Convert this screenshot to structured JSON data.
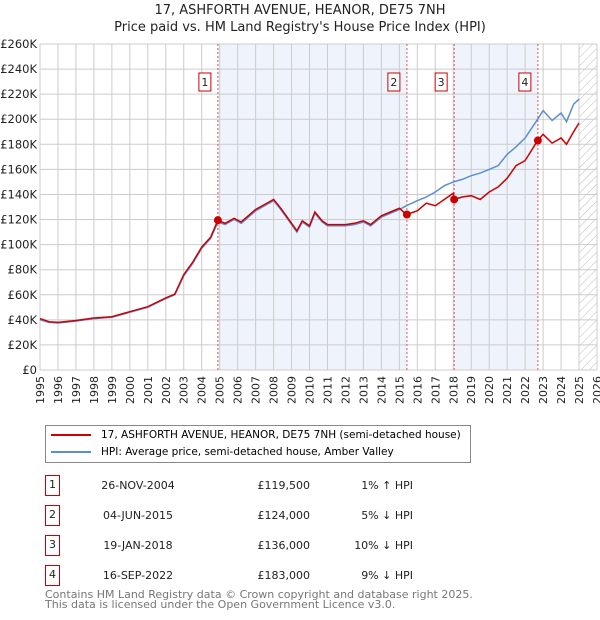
{
  "chart_data": {
    "type": "line",
    "title": "17, ASHFORTH AVENUE, HEANOR, DE75 7NH",
    "subtitle": "Price paid vs. HM Land Registry's House Price Index (HPI)",
    "xlim": [
      1995,
      2026
    ],
    "ylim": [
      0,
      260000
    ],
    "x_ticks": [
      1995,
      1996,
      1997,
      1998,
      1999,
      2000,
      2001,
      2002,
      2003,
      2004,
      2005,
      2006,
      2007,
      2008,
      2009,
      2010,
      2011,
      2012,
      2013,
      2014,
      2015,
      2016,
      2017,
      2018,
      2019,
      2020,
      2021,
      2022,
      2023,
      2024,
      2025,
      2026
    ],
    "y_ticks": [
      {
        "v": 0,
        "label": "£0"
      },
      {
        "v": 20000,
        "label": "£20K"
      },
      {
        "v": 40000,
        "label": "£40K"
      },
      {
        "v": 60000,
        "label": "£60K"
      },
      {
        "v": 80000,
        "label": "£80K"
      },
      {
        "v": 100000,
        "label": "£100K"
      },
      {
        "v": 120000,
        "label": "£120K"
      },
      {
        "v": 140000,
        "label": "£140K"
      },
      {
        "v": 160000,
        "label": "£160K"
      },
      {
        "v": 180000,
        "label": "£180K"
      },
      {
        "v": 200000,
        "label": "£200K"
      },
      {
        "v": 220000,
        "label": "£220K"
      },
      {
        "v": 240000,
        "label": "£240K"
      },
      {
        "v": 260000,
        "label": "£260K"
      }
    ],
    "grid": true,
    "series": [
      {
        "name": "HPI: Average price, semi-detached house, Amber Valley",
        "color": "#5b8fd4",
        "x": [
          1995,
          1995.5,
          1996,
          1997,
          1998,
          1999,
          2000,
          2001,
          2002,
          2002.5,
          2003,
          2003.5,
          2004,
          2004.5,
          2004.9,
          2005.3,
          2005.8,
          2006.2,
          2007,
          2007.5,
          2008,
          2008.4,
          2008.8,
          2009.3,
          2009.6,
          2010,
          2010.3,
          2010.7,
          2011,
          2012,
          2012.5,
          2013,
          2013.4,
          2014,
          2014.5,
          2015,
          2015.4,
          2016,
          2016.5,
          2017,
          2017.5,
          2018,
          2018.5,
          2019,
          2019.5,
          2020,
          2020.5,
          2021,
          2021.5,
          2022,
          2022.7,
          2023,
          2023.5,
          2024,
          2024.3,
          2024.7,
          2025
        ],
        "y": [
          40000,
          38000,
          37500,
          39000,
          41000,
          42000,
          46000,
          50000,
          57000,
          60000,
          75000,
          85000,
          97000,
          105000,
          118000,
          116000,
          120000,
          117000,
          127000,
          131000,
          135000,
          128000,
          120000,
          110000,
          118000,
          114000,
          125000,
          118000,
          115000,
          115000,
          116000,
          118000,
          115000,
          122000,
          125000,
          128000,
          131000,
          135000,
          138000,
          142000,
          147000,
          150000,
          152000,
          155000,
          157000,
          160000,
          163000,
          172000,
          178000,
          185000,
          200000,
          207000,
          199000,
          205000,
          198000,
          212000,
          216000
        ]
      },
      {
        "name": "17, ASHFORTH AVENUE, HEANOR, DE75 7NH (semi-detached house)",
        "color": "#cc0000",
        "x": [
          1995,
          1995.5,
          1996,
          1997,
          1998,
          1999,
          2000,
          2001,
          2002,
          2002.5,
          2003,
          2003.5,
          2004,
          2004.5,
          2004.9,
          2005.3,
          2005.8,
          2006.2,
          2007,
          2007.5,
          2008,
          2008.4,
          2008.8,
          2009.3,
          2009.6,
          2010,
          2010.3,
          2010.7,
          2011,
          2012,
          2012.5,
          2013,
          2013.4,
          2014,
          2014.5,
          2015,
          2015.4,
          2016,
          2016.5,
          2017,
          2018,
          2018.05,
          2018.5,
          2019,
          2019.5,
          2020,
          2020.5,
          2021,
          2021.5,
          2022,
          2022.7,
          2023,
          2023.5,
          2024,
          2024.3,
          2024.7,
          2025
        ],
        "y": [
          41000,
          38500,
          38000,
          39500,
          41500,
          42500,
          46500,
          50500,
          57500,
          60500,
          76000,
          86000,
          98000,
          106000,
          119500,
          117000,
          121000,
          118000,
          128000,
          132000,
          136000,
          129000,
          121000,
          111000,
          119000,
          115000,
          126000,
          119000,
          116000,
          116000,
          117000,
          119000,
          116000,
          123000,
          126000,
          129000,
          124000,
          127000,
          133000,
          131000,
          141000,
          136000,
          138000,
          139000,
          136000,
          142000,
          146000,
          153000,
          163000,
          167000,
          183000,
          188000,
          181000,
          185000,
          180000,
          190000,
          197000
        ]
      }
    ],
    "sales": [
      {
        "n": "1",
        "x": 2004.9,
        "y": 119500,
        "date": "26-NOV-2004",
        "price": "£119,500",
        "hpi": "1% ↑ HPI"
      },
      {
        "n": "2",
        "x": 2015.42,
        "y": 124000,
        "date": "04-JUN-2015",
        "price": "£124,000",
        "hpi": "5% ↓ HPI"
      },
      {
        "n": "3",
        "x": 2018.05,
        "y": 136000,
        "date": "19-JAN-2018",
        "price": "£136,000",
        "hpi": "10% ↓ HPI"
      },
      {
        "n": "4",
        "x": 2022.71,
        "y": 183000,
        "date": "16-SEP-2022",
        "price": "£183,000",
        "hpi": "9% ↓ HPI"
      }
    ],
    "shaded": [
      [
        2004.9,
        2015.42
      ],
      [
        2018.05,
        2022.71
      ]
    ],
    "hatched_from": 2025.0
  },
  "footer": {
    "line1": "Contains HM Land Registry data © Crown copyright and database right 2025.",
    "line2": "This data is licensed under the Open Government Licence v3.0."
  }
}
